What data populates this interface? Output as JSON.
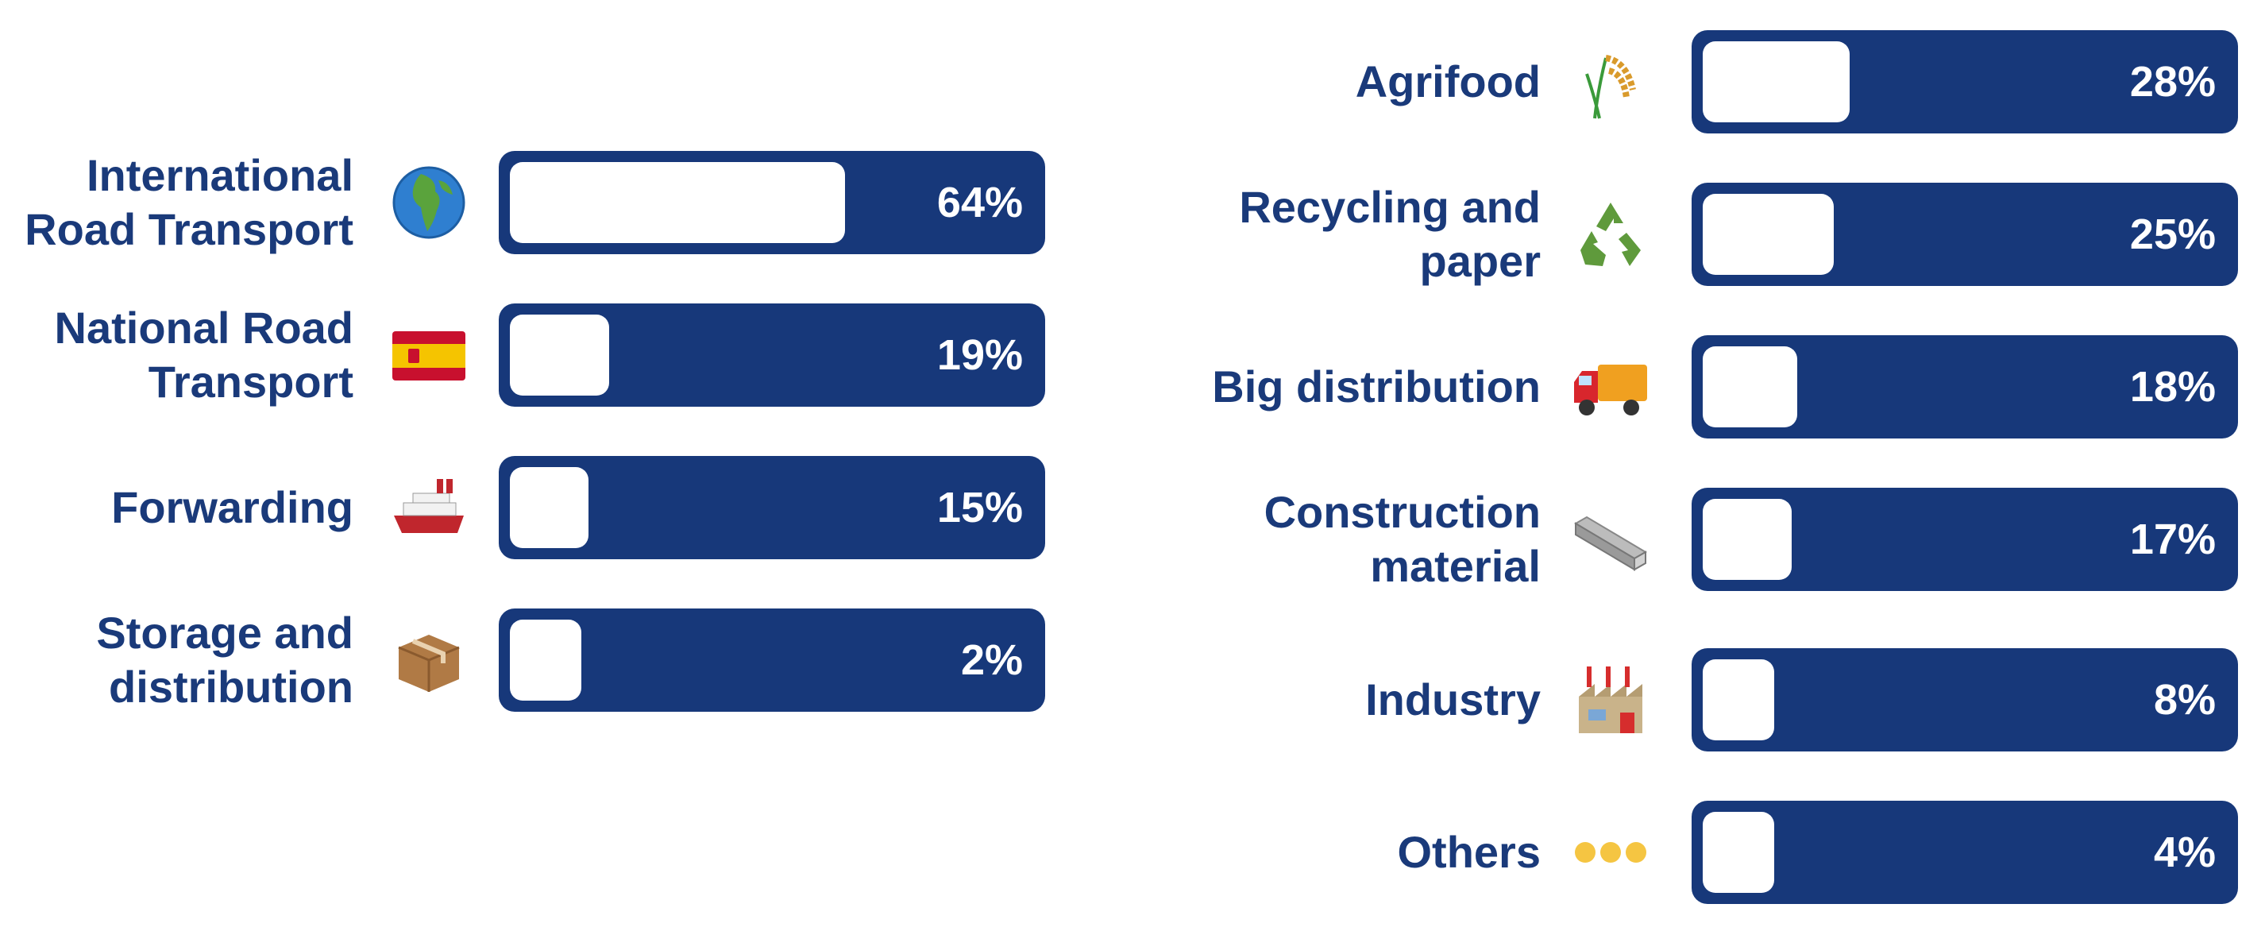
{
  "chart_data": [
    {
      "type": "bar",
      "categories": [
        "International\nRoad Transport",
        "National Road\nTransport",
        "Forwarding",
        "Storage and\ndistribution"
      ],
      "values": [
        64,
        19,
        15,
        2
      ],
      "labels": [
        "64%",
        "19%",
        "15%",
        "2%"
      ],
      "icons": [
        "globe-icon",
        "spain-flag-icon",
        "ship-icon",
        "box-icon"
      ],
      "ylim": [
        0,
        100
      ]
    },
    {
      "type": "bar",
      "categories": [
        "Agrifood",
        "Recycling and\npaper",
        "Big distribution",
        "Construction\nmaterial",
        "Industry",
        "Others"
      ],
      "values": [
        28,
        25,
        18,
        17,
        8,
        4
      ],
      "labels": [
        "28%",
        "25%",
        "18%",
        "17%",
        "8%",
        "4%"
      ],
      "icons": [
        "wheat-icon",
        "recycle-icon",
        "truck-icon",
        "steel-beam-icon",
        "factory-icon",
        "dots-icon"
      ],
      "ylim": [
        0,
        100
      ]
    }
  ],
  "colors": {
    "bar": "#17387a",
    "text": "#1a3a7a",
    "fill": "#ffffff",
    "dots": "#f5c542"
  }
}
